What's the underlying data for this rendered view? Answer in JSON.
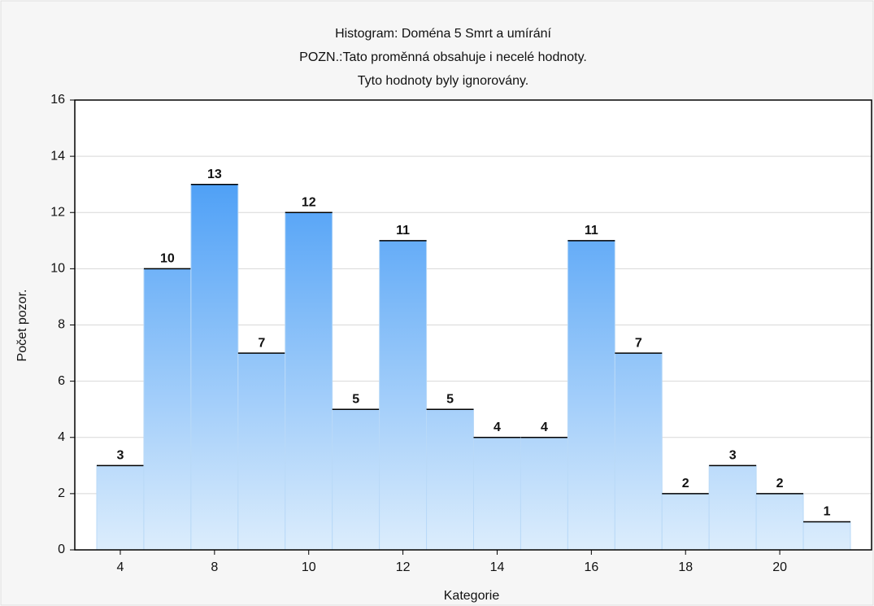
{
  "chart_data": {
    "type": "bar",
    "title": "Histogram: Doména 5 Smrt a umírání",
    "subtitle": [
      "POZN.:Tato proměnná obsahuje i necelé hodnoty.",
      "Tyto hodnoty byly ignorovány."
    ],
    "x_label": "Kategorie",
    "y_label": "Počet pozor.",
    "categories": [
      "4",
      null,
      "8",
      null,
      "10",
      null,
      "12",
      null,
      "14",
      null,
      "16",
      null,
      "18",
      null,
      "20",
      null
    ],
    "values": [
      3,
      10,
      13,
      7,
      12,
      5,
      11,
      5,
      4,
      4,
      11,
      7,
      2,
      3,
      2,
      1
    ],
    "color": "#2f8ff5",
    "ylim": [
      0,
      16
    ],
    "yticks": [
      0,
      2,
      4,
      6,
      8,
      10,
      12,
      14,
      16
    ],
    "grid": true
  }
}
